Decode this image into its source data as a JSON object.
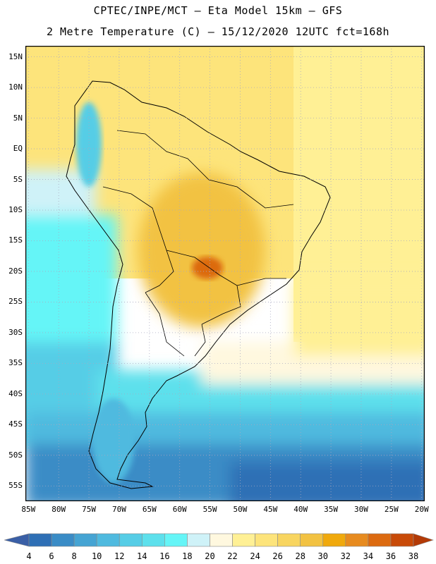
{
  "title": {
    "line1": "CPTEC/INPE/MCT –  Eta Model 15km – GFS",
    "line2": "2 Metre Temperature (C) – 15/12/2020 12UTC fct=168h"
  },
  "map": {
    "lat_labels": [
      "15N",
      "10N",
      "5N",
      "EQ",
      "5S",
      "10S",
      "15S",
      "20S",
      "25S",
      "30S",
      "35S",
      "40S",
      "45S",
      "50S",
      "55S"
    ],
    "lon_labels": [
      "85W",
      "80W",
      "75W",
      "70W",
      "65W",
      "60W",
      "55W",
      "50W",
      "45W",
      "40W",
      "35W",
      "30W",
      "25W",
      "20W"
    ],
    "lat_values": [
      15,
      10,
      5,
      0,
      -5,
      -10,
      -15,
      -20,
      -25,
      -30,
      -35,
      -40,
      -45,
      -50,
      -55
    ],
    "lon_values": [
      -85,
      -80,
      -75,
      -70,
      -65,
      -60,
      -55,
      -50,
      -45,
      -40,
      -35,
      -30,
      -25,
      -20
    ],
    "extent": {
      "lon_min": -85.5,
      "lon_max": -19.5,
      "lat_min": -57.5,
      "lat_max": 16.8
    },
    "grid_color": "#a8a8c0",
    "coast_color": "#000000"
  },
  "colorbar": {
    "labels": [
      "4",
      "6",
      "8",
      "10",
      "12",
      "14",
      "16",
      "18",
      "20",
      "22",
      "24",
      "26",
      "28",
      "30",
      "32",
      "34",
      "36",
      "38"
    ],
    "colors": [
      "#3a5fa6",
      "#2e6fb5",
      "#3a8cc6",
      "#45a4d3",
      "#4fbadf",
      "#56cde6",
      "#5de0ec",
      "#65f5f7",
      "#cff2f8",
      "#fff8df",
      "#fff095",
      "#fde47b",
      "#f8d560",
      "#f2c242",
      "#f0a90c",
      "#e78b1f",
      "#dc6a10",
      "#c84a08",
      "#b33a06"
    ]
  }
}
